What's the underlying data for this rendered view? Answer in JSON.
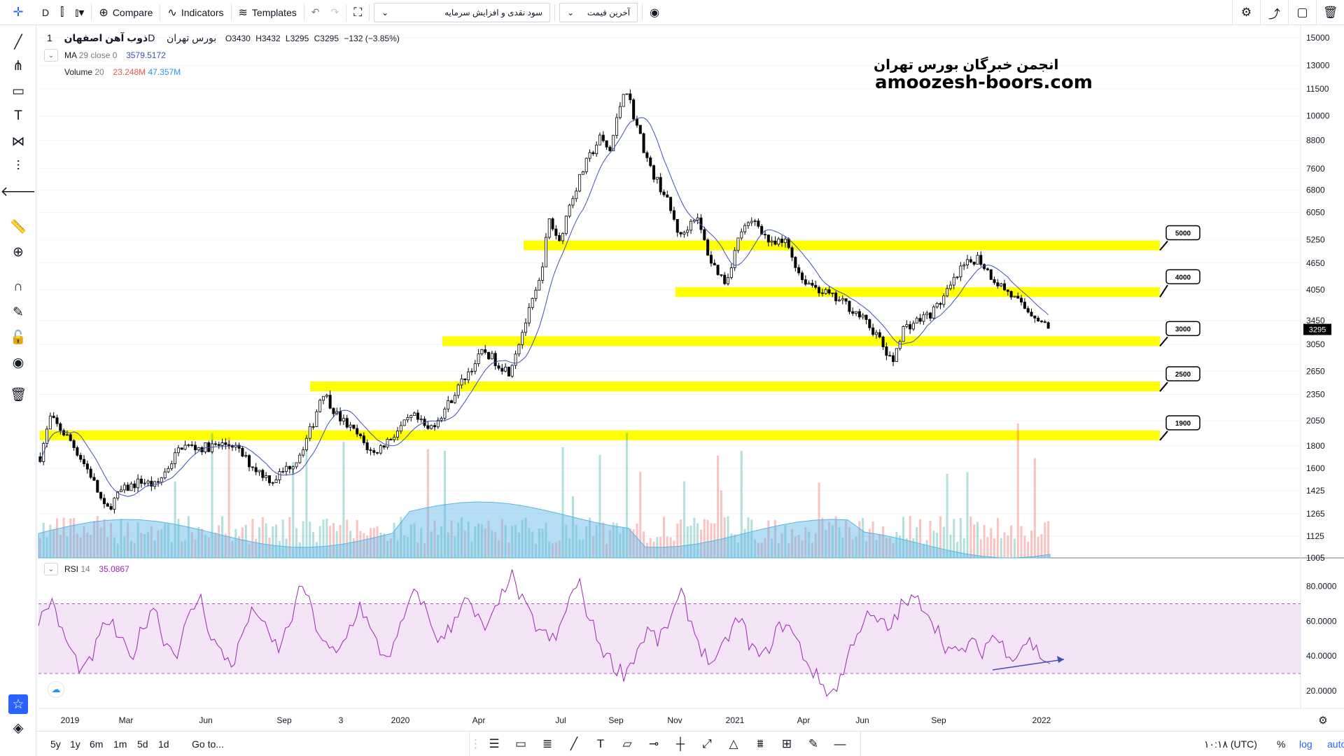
{
  "toolbar": {
    "interval": "D",
    "compare": "Compare",
    "indicators": "Indicators",
    "templates": "Templates",
    "strategy_select": "سود نقدی و افزایش سرمایه",
    "price_select": "آخرین قیمت"
  },
  "legend": {
    "symbol": "ذوب آهن اصفهان",
    "interval": "1D",
    "exchange": "بورس تهران",
    "open": "O3430",
    "high": "H3432",
    "low": "L3295",
    "close": "C3295",
    "change": "−132 (−3.85%)",
    "ma_label": "MA",
    "ma_params": "29 close 0",
    "ma_value": "3579.5172",
    "vol_label": "Volume",
    "vol_params": "20",
    "vol_value1": "23.248M",
    "vol_value2": "47.357M",
    "rsi_label": "RSI",
    "rsi_params": "14",
    "rsi_value": "35.0867"
  },
  "watermark": {
    "line1": "انجمن خبرگان بورس تهران",
    "line2": "amoozesh-boors.com"
  },
  "last_price_tag": "3295",
  "bottom": {
    "ranges": [
      "5y",
      "1y",
      "6m",
      "1m",
      "5d",
      "1d"
    ],
    "goto": "Go to...",
    "time": "۱۰:۱۸ (UTC)",
    "pct": "%",
    "log": "log",
    "auto": "auto"
  },
  "colors": {
    "up": "#000000",
    "down": "#000000",
    "ma": "#3f51b5",
    "zone": "#ffff00",
    "rsi": "#9c27b0",
    "rsi_band": "#f3e5f5",
    "vol_ma": "#5ab4e6",
    "accent": "#2962ff"
  },
  "chart_data": [
    {
      "type": "candlestick",
      "scale": "log",
      "ylim": [
        1005,
        15000
      ],
      "y_ticks": [
        15000,
        13000,
        11500,
        10000,
        8800,
        7600,
        6800,
        6050,
        5250,
        4650,
        4050,
        3450,
        3050,
        2650,
        2350,
        2050,
        1800,
        1600,
        1425,
        1265,
        1125,
        1005
      ],
      "x_ticks": [
        "2019",
        "Mar",
        "Jun",
        "Sep",
        "3",
        "2020",
        "Apr",
        "Jul",
        "Sep",
        "Nov",
        "2021",
        "Apr",
        "Jun",
        "Sep",
        "2022"
      ],
      "close_path": [
        {
          "t": 0.0,
          "p": 1700
        },
        {
          "t": 0.01,
          "p": 2080
        },
        {
          "t": 0.03,
          "p": 1850
        },
        {
          "t": 0.05,
          "p": 1550
        },
        {
          "t": 0.065,
          "p": 1280
        },
        {
          "t": 0.08,
          "p": 1420
        },
        {
          "t": 0.1,
          "p": 1500
        },
        {
          "t": 0.115,
          "p": 1460
        },
        {
          "t": 0.14,
          "p": 1800
        },
        {
          "t": 0.16,
          "p": 1780
        },
        {
          "t": 0.19,
          "p": 1820
        },
        {
          "t": 0.21,
          "p": 1620
        },
        {
          "t": 0.23,
          "p": 1500
        },
        {
          "t": 0.255,
          "p": 1680
        },
        {
          "t": 0.27,
          "p": 2000
        },
        {
          "t": 0.28,
          "p": 2400
        },
        {
          "t": 0.295,
          "p": 2100
        },
        {
          "t": 0.315,
          "p": 1900
        },
        {
          "t": 0.33,
          "p": 1720
        },
        {
          "t": 0.35,
          "p": 1900
        },
        {
          "t": 0.37,
          "p": 2100
        },
        {
          "t": 0.385,
          "p": 1950
        },
        {
          "t": 0.4,
          "p": 2150
        },
        {
          "t": 0.42,
          "p": 2550
        },
        {
          "t": 0.44,
          "p": 2950
        },
        {
          "t": 0.455,
          "p": 2750
        },
        {
          "t": 0.465,
          "p": 2650
        },
        {
          "t": 0.48,
          "p": 3350
        },
        {
          "t": 0.495,
          "p": 4200
        },
        {
          "t": 0.505,
          "p": 5800
        },
        {
          "t": 0.515,
          "p": 5200
        },
        {
          "t": 0.525,
          "p": 6300
        },
        {
          "t": 0.54,
          "p": 7700
        },
        {
          "t": 0.555,
          "p": 8900
        },
        {
          "t": 0.565,
          "p": 8300
        },
        {
          "t": 0.58,
          "p": 11800
        },
        {
          "t": 0.59,
          "p": 9800
        },
        {
          "t": 0.605,
          "p": 7600
        },
        {
          "t": 0.62,
          "p": 6600
        },
        {
          "t": 0.635,
          "p": 5300
        },
        {
          "t": 0.65,
          "p": 6000
        },
        {
          "t": 0.665,
          "p": 4700
        },
        {
          "t": 0.68,
          "p": 4200
        },
        {
          "t": 0.695,
          "p": 5500
        },
        {
          "t": 0.71,
          "p": 5800
        },
        {
          "t": 0.725,
          "p": 5100
        },
        {
          "t": 0.74,
          "p": 5200
        },
        {
          "t": 0.755,
          "p": 4300
        },
        {
          "t": 0.77,
          "p": 4100
        },
        {
          "t": 0.785,
          "p": 3900
        },
        {
          "t": 0.8,
          "p": 3750
        },
        {
          "t": 0.815,
          "p": 3500
        },
        {
          "t": 0.83,
          "p": 3200
        },
        {
          "t": 0.845,
          "p": 2750
        },
        {
          "t": 0.855,
          "p": 3300
        },
        {
          "t": 0.87,
          "p": 3450
        },
        {
          "t": 0.885,
          "p": 3600
        },
        {
          "t": 0.9,
          "p": 4000
        },
        {
          "t": 0.915,
          "p": 4550
        },
        {
          "t": 0.93,
          "p": 4800
        },
        {
          "t": 0.945,
          "p": 4300
        },
        {
          "t": 0.96,
          "p": 4000
        },
        {
          "t": 0.975,
          "p": 3700
        },
        {
          "t": 0.99,
          "p": 3500
        },
        {
          "t": 1.0,
          "p": 3295
        }
      ],
      "zones": [
        {
          "label": "5000",
          "price": 5100
        },
        {
          "label": "4000",
          "price": 4000
        },
        {
          "label": "3000",
          "price": 3100
        },
        {
          "label": "2500",
          "price": 2450
        },
        {
          "label": "1900",
          "price": 1900
        }
      ]
    },
    {
      "type": "line",
      "name": "RSI",
      "ylim": [
        10,
        95
      ],
      "y_ticks": [
        "80.0000",
        "60.0000",
        "40.0000",
        "20.0000"
      ],
      "y_tick_values": [
        80,
        60,
        40,
        20
      ],
      "band": [
        30,
        70
      ],
      "values": [
        60,
        72,
        55,
        40,
        30,
        45,
        62,
        50,
        38,
        55,
        70,
        48,
        42,
        60,
        75,
        52,
        40,
        36,
        58,
        68,
        50,
        44,
        62,
        82,
        60,
        45,
        40,
        55,
        70,
        52,
        40,
        45,
        66,
        78,
        60,
        48,
        58,
        75,
        62,
        55,
        68,
        88,
        72,
        60,
        52,
        48,
        70,
        82,
        60,
        45,
        35,
        30,
        42,
        55,
        48,
        62,
        75,
        55,
        40,
        35,
        52,
        62,
        45,
        38,
        52,
        60,
        48,
        35,
        25,
        18,
        30,
        52,
        62,
        60,
        55,
        68,
        72,
        70,
        58,
        45,
        40,
        48,
        42,
        52,
        45,
        40,
        50,
        42,
        35
      ]
    }
  ]
}
